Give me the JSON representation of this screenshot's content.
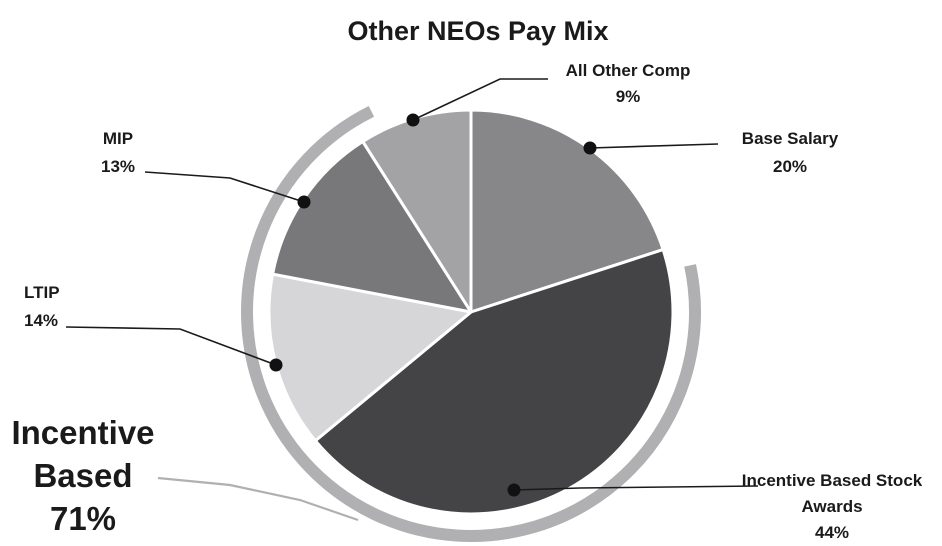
{
  "chart_data": {
    "type": "pie",
    "title": "Other NEOs Pay Mix",
    "slices": [
      {
        "label": "Base Salary",
        "value": 20,
        "value_label": "20%",
        "color": "#87878a"
      },
      {
        "label": "Incentive Based Stock Awards",
        "value": 44,
        "value_label": "44%",
        "color": "#444447"
      },
      {
        "label": "LTIP",
        "value": 14,
        "value_label": "14%",
        "color": "#d6d6d8"
      },
      {
        "label": "MIP",
        "value": 13,
        "value_label": "13%",
        "color": "#78787a"
      },
      {
        "label": "All Other Comp",
        "value": 9,
        "value_label": "9%",
        "color": "#a3a3a6"
      }
    ],
    "group_arc": {
      "label_lines": [
        "Incentive",
        "Based"
      ],
      "value_label": "71%",
      "members": [
        "Incentive Based Stock Awards",
        "LTIP",
        "MIP"
      ],
      "color": "#b0b0b3"
    }
  }
}
